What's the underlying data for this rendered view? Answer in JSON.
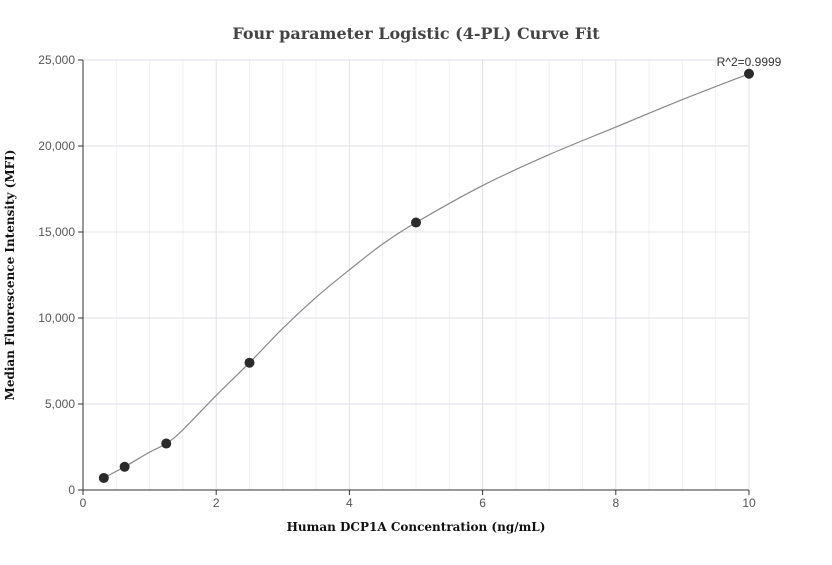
{
  "chart_data": {
    "type": "scatter",
    "title": "Four parameter Logistic (4-PL) Curve Fit",
    "xlabel": "Human DCP1A Concentration (ng/mL)",
    "ylabel": "Median Fluorescence Intensity (MFI)",
    "xlim": [
      0,
      10
    ],
    "ylim": [
      0,
      25000
    ],
    "x_ticks": [
      0,
      2,
      4,
      6,
      8,
      10
    ],
    "x_tick_labels": [
      "0",
      "2",
      "4",
      "6",
      "8",
      "10"
    ],
    "y_ticks": [
      0,
      5000,
      10000,
      15000,
      20000,
      25000
    ],
    "y_tick_labels": [
      "0",
      "5,000",
      "10,000",
      "15,000",
      "20,000",
      "25,000"
    ],
    "grid": true,
    "points": [
      {
        "x": 0.3125,
        "y": 700
      },
      {
        "x": 0.625,
        "y": 1350
      },
      {
        "x": 1.25,
        "y": 2700
      },
      {
        "x": 2.5,
        "y": 7400
      },
      {
        "x": 5,
        "y": 15550
      },
      {
        "x": 10,
        "y": 24200
      }
    ],
    "fit_curve": {
      "model": "4-PL",
      "x": [
        0.3125,
        0.625,
        1.0,
        1.25,
        1.5,
        2.0,
        2.5,
        3.0,
        3.5,
        4.0,
        4.5,
        5.0,
        6.0,
        7.0,
        8.0,
        9.0,
        10.0
      ],
      "y": [
        700,
        1350,
        2200,
        2700,
        3500,
        5500,
        7400,
        9400,
        11200,
        12800,
        14300,
        15550,
        17700,
        19500,
        21100,
        22700,
        24200
      ]
    },
    "annotation": "R^2=0.9999"
  },
  "colors": {
    "point": "#2b2b2b",
    "curve": "#888888",
    "grid": "#e2e2e8"
  }
}
